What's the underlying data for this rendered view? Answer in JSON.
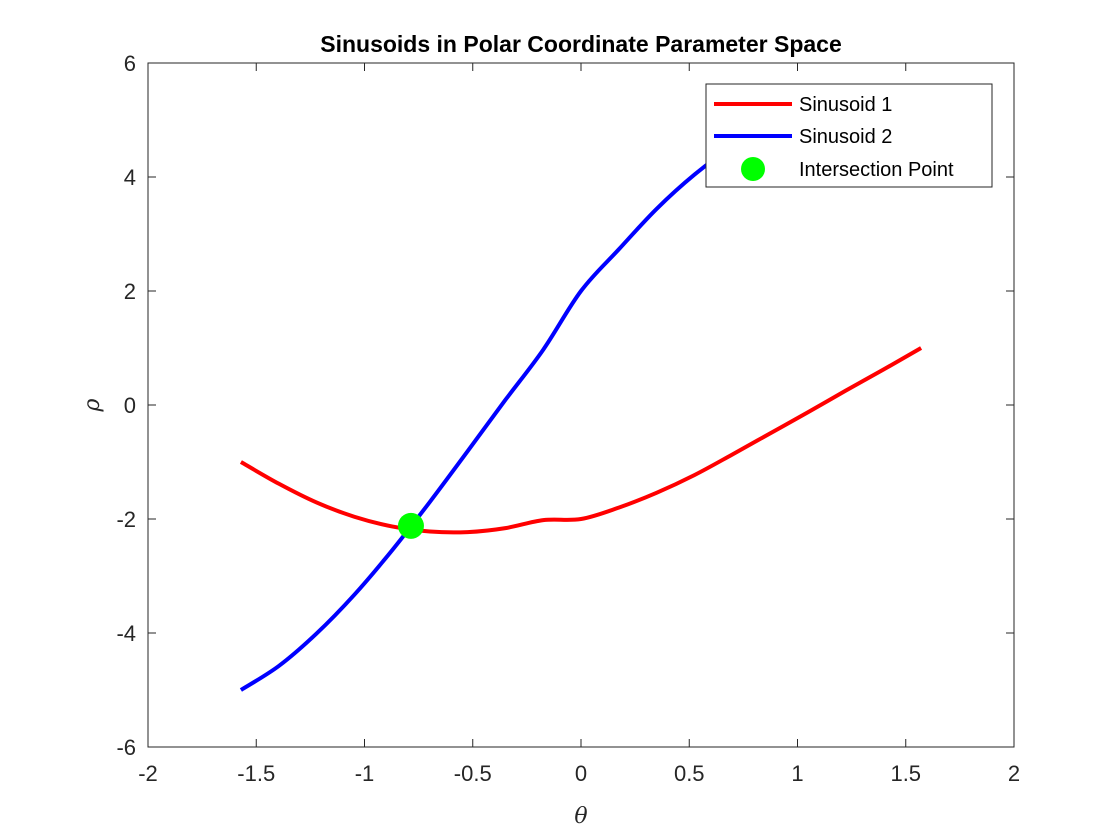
{
  "chart_data": {
    "type": "line",
    "title": "Sinusoids in Polar Coordinate Parameter Space",
    "xlabel": "θ",
    "ylabel": "ρ",
    "xlim": [
      -2,
      2
    ],
    "ylim": [
      -6,
      6
    ],
    "xticks": [
      -2,
      -1.5,
      -1,
      -0.5,
      0,
      0.5,
      1,
      1.5,
      2
    ],
    "xtick_labels": [
      "-2",
      "-1.5",
      "-1",
      "-0.5",
      "0",
      "0.5",
      "1",
      "1.5",
      "2"
    ],
    "yticks": [
      -6,
      -4,
      -2,
      0,
      2,
      4,
      6
    ],
    "ytick_labels": [
      "-6",
      "-4",
      "-2",
      "0",
      "2",
      "4",
      "6"
    ],
    "grid": false,
    "legend_position": "top-right",
    "series": [
      {
        "name": "Sinusoid 1",
        "color": "#ff0000",
        "x": [
          -1.5708,
          -1.3963,
          -1.2217,
          -1.0472,
          -0.8727,
          -0.6981,
          -0.5236,
          -0.3491,
          -0.1745,
          0.0,
          0.1745,
          0.3491,
          0.5236,
          0.6981,
          0.8727,
          1.0472,
          1.2217,
          1.3963,
          1.5708
        ],
        "y": [
          -1.0,
          -1.38,
          -1.71,
          -1.96,
          -2.13,
          -2.22,
          -2.23,
          -2.16,
          -2.02,
          -2.0,
          -1.8,
          -1.54,
          -1.23,
          -0.87,
          -0.5,
          -0.13,
          0.25,
          0.62,
          1.0
        ]
      },
      {
        "name": "Sinusoid 2",
        "color": "#0000ff",
        "x": [
          -1.5708,
          -1.3963,
          -1.2217,
          -1.0472,
          -0.8727,
          -0.6981,
          -0.5236,
          -0.3491,
          -0.1745,
          0.0,
          0.1745,
          0.3491,
          0.5236,
          0.6981,
          0.8727,
          1.0472,
          1.2217,
          1.3963,
          1.5708
        ],
        "y": [
          -5.0,
          -4.58,
          -4.01,
          -3.33,
          -2.55,
          -1.7,
          -0.81,
          0.09,
          0.97,
          2.0,
          2.73,
          3.44,
          4.04,
          4.53,
          4.87,
          5.07,
          5.12,
          5.1,
          5.0
        ]
      }
    ],
    "markers": [
      {
        "name": "Intersection Point",
        "color": "#00ff00",
        "x": -0.7854,
        "y": -2.12
      }
    ]
  }
}
